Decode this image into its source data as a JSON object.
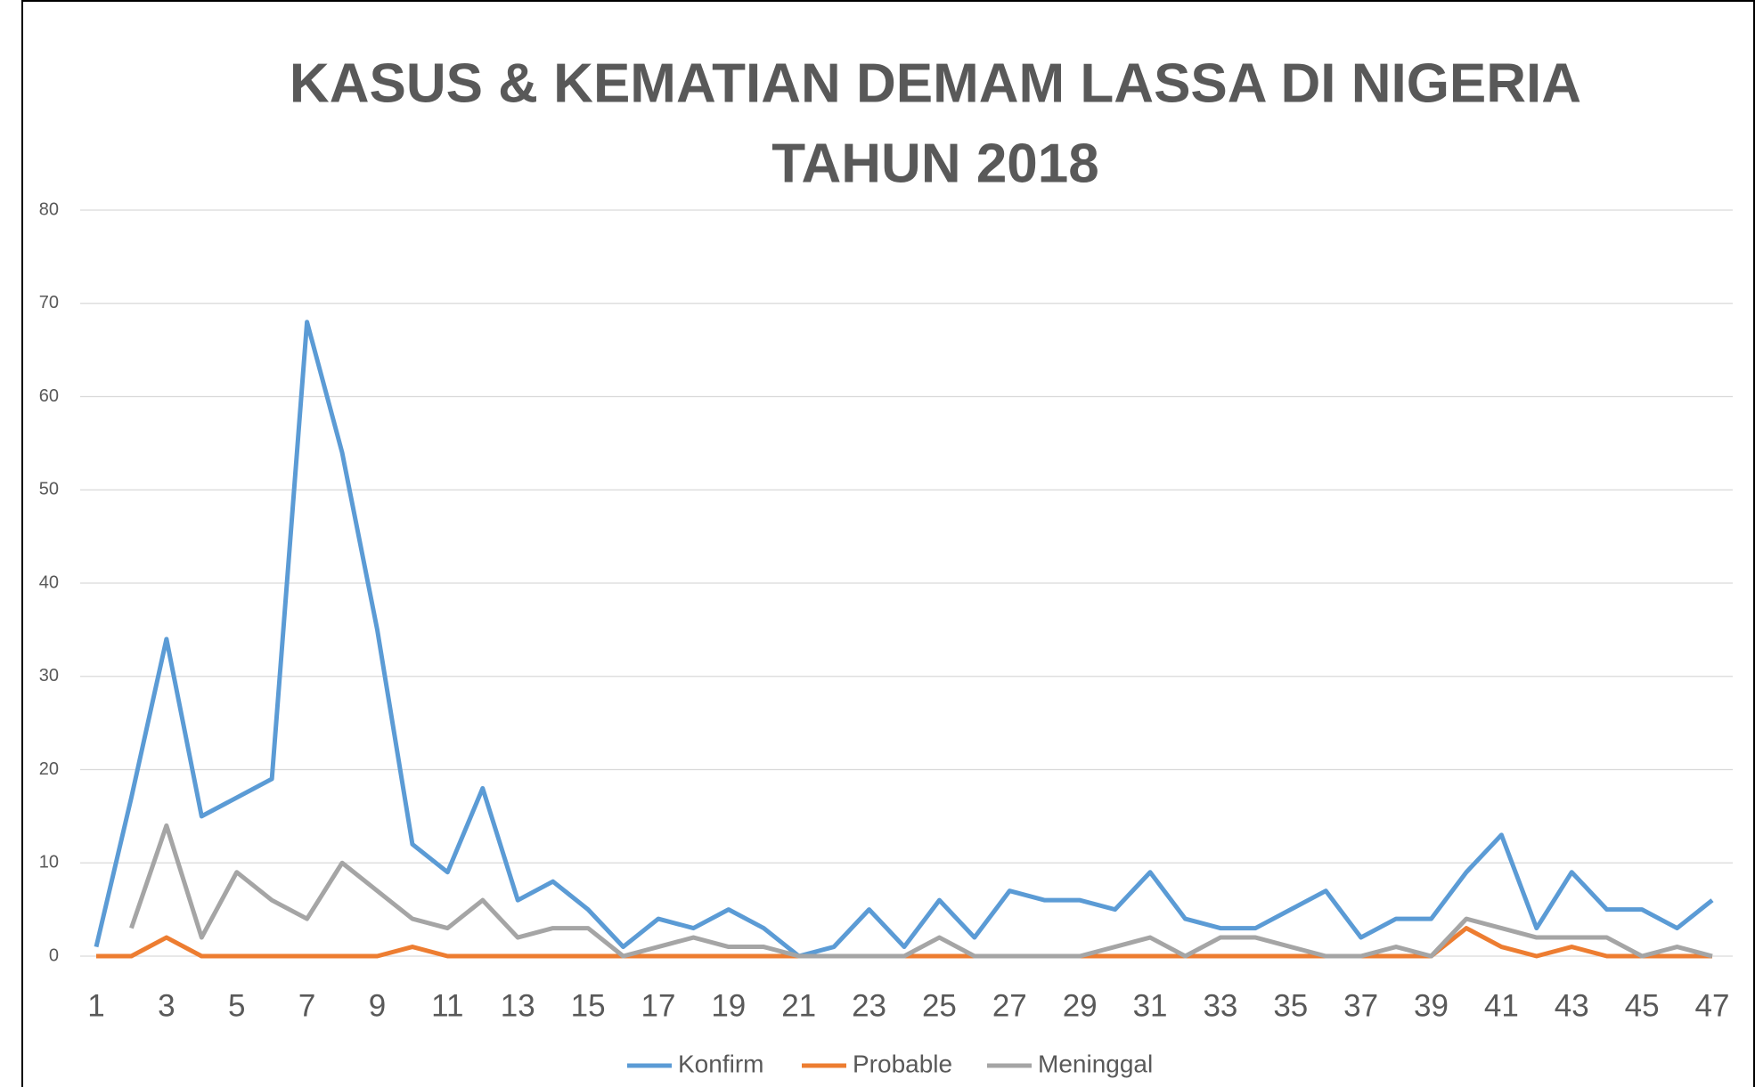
{
  "chart_data": {
    "type": "line",
    "title": [
      "KASUS & KEMATIAN DEMAM LASSA DI NIGERIA",
      "TAHUN 2018"
    ],
    "x": [
      1,
      2,
      3,
      4,
      5,
      6,
      7,
      8,
      9,
      10,
      11,
      12,
      13,
      14,
      15,
      16,
      17,
      18,
      19,
      20,
      21,
      22,
      23,
      24,
      25,
      26,
      27,
      28,
      29,
      30,
      31,
      32,
      33,
      34,
      35,
      36,
      37,
      38,
      39,
      40,
      41,
      42,
      43,
      44,
      45,
      46,
      47
    ],
    "series": [
      {
        "name": "Konfirm",
        "color": "#5b9bd5",
        "values": [
          1,
          17,
          34,
          15,
          17,
          19,
          68,
          54,
          35,
          12,
          9,
          18,
          6,
          8,
          5,
          1,
          4,
          3,
          5,
          3,
          0,
          1,
          5,
          1,
          6,
          2,
          7,
          6,
          6,
          5,
          9,
          4,
          3,
          3,
          5,
          7,
          2,
          4,
          4,
          9,
          13,
          3,
          9,
          5,
          5,
          3,
          6
        ]
      },
      {
        "name": "Probable",
        "color": "#ed7d31",
        "values": [
          0,
          0,
          2,
          0,
          0,
          0,
          0,
          0,
          0,
          1,
          0,
          0,
          0,
          0,
          0,
          0,
          0,
          0,
          0,
          0,
          0,
          0,
          0,
          0,
          0,
          0,
          0,
          0,
          0,
          0,
          0,
          0,
          0,
          0,
          0,
          0,
          0,
          0,
          0,
          3,
          1,
          0,
          1,
          0,
          0,
          0,
          0
        ]
      },
      {
        "name": "Meninggal",
        "color": "#a5a5a5",
        "values": [
          null,
          3,
          14,
          2,
          9,
          6,
          4,
          10,
          7,
          4,
          3,
          6,
          2,
          3,
          3,
          0,
          1,
          2,
          1,
          1,
          0,
          0,
          0,
          0,
          2,
          0,
          0,
          0,
          0,
          1,
          2,
          0,
          2,
          2,
          1,
          0,
          0,
          1,
          0,
          4,
          3,
          2,
          2,
          2,
          0,
          1,
          0
        ]
      }
    ],
    "xlim": [
      1,
      47
    ],
    "xticks": [
      1,
      3,
      5,
      7,
      9,
      11,
      13,
      15,
      17,
      19,
      21,
      23,
      25,
      27,
      29,
      31,
      33,
      35,
      37,
      39,
      41,
      43,
      45,
      47
    ],
    "ylim": [
      0,
      80
    ],
    "yticks": [
      0,
      10,
      20,
      30,
      40,
      50,
      60,
      70,
      80
    ],
    "grid": true,
    "legend": "bottom"
  }
}
